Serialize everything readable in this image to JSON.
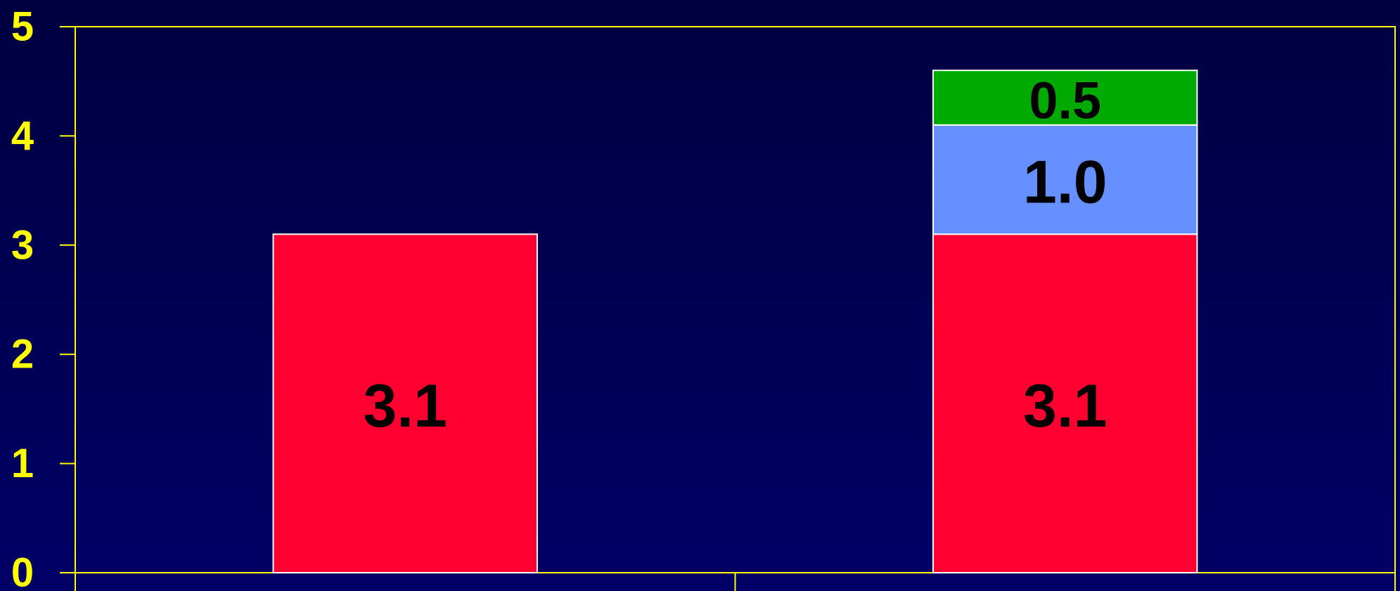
{
  "chart_data": {
    "type": "stacked_bar",
    "categories": [
      null,
      null
    ],
    "series": [
      {
        "color": "#ff0030",
        "values": [
          3.1,
          3.1
        ]
      },
      {
        "color": "#6690ff",
        "values": [
          null,
          1.0
        ],
        "value_labels": [
          null,
          "1.0"
        ]
      },
      {
        "color": "#00aa00",
        "values": [
          null,
          0.5
        ]
      }
    ],
    "ylim": [
      0,
      5
    ],
    "yticks": [
      0,
      1,
      2,
      3,
      4,
      5
    ],
    "grid": false
  }
}
